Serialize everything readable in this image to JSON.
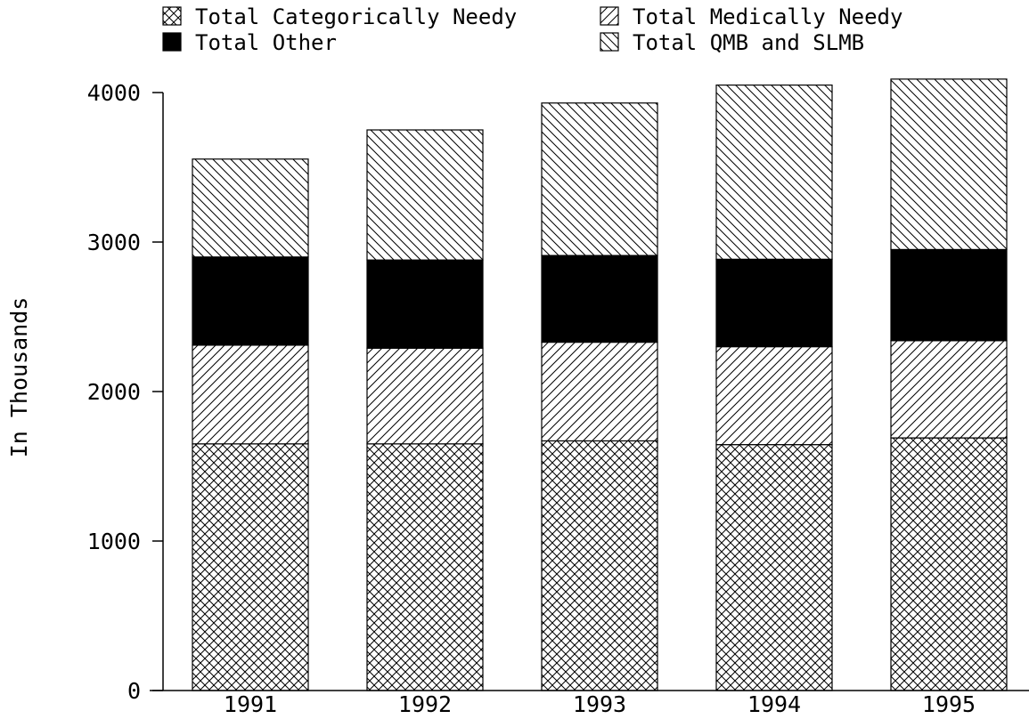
{
  "chart_data": {
    "type": "bar",
    "stacked": true,
    "categories": [
      "1991",
      "1992",
      "1993",
      "1994",
      "1995"
    ],
    "series": [
      {
        "name": "Total Categorically Needy",
        "values": [
          1650,
          1650,
          1670,
          1645,
          1690
        ],
        "pattern": "crosshatch"
      },
      {
        "name": "Total Medically Needy",
        "values": [
          660,
          640,
          660,
          655,
          650
        ],
        "pattern": "forward-diagonal"
      },
      {
        "name": "Total Other",
        "values": [
          590,
          590,
          580,
          585,
          610
        ],
        "pattern": "solid"
      },
      {
        "name": "Total QMB and SLMB",
        "values": [
          655,
          870,
          1020,
          1165,
          1140
        ],
        "pattern": "back-diagonal"
      }
    ],
    "title": "",
    "xlabel": "",
    "ylabel": "In Thousands",
    "ylim": [
      0,
      4000
    ],
    "yticks": [
      "0",
      "1000",
      "2000",
      "3000",
      "4000"
    ],
    "grid": false,
    "legend_position": "top",
    "colors": {
      "ink": "#000000",
      "background": "#ffffff"
    }
  }
}
